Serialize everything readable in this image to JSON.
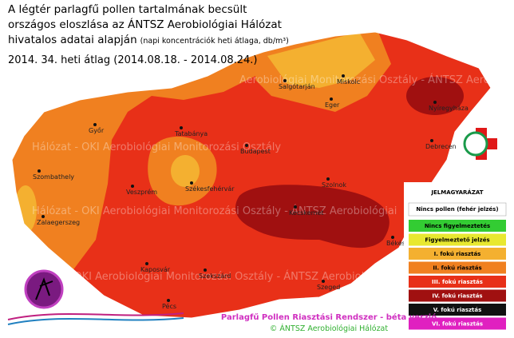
{
  "header": {
    "title_lines": [
      "A légtér parlagfű pollen tartalmának becsült",
      "országos eloszlása az ÁNTSZ Aerobiológiai Hálózat",
      "hivatalos adatai alapján"
    ],
    "note": "(napi koncentrációk heti átlaga, db/m³)",
    "period": "2014. 34. heti átlag (2014.08.18. - 2014.08.24.)"
  },
  "watermarks": [
    "Aerobiológiai Monitorozási Osztály - ÁNTSZ Aerobiológiai",
    "Hálózat - OKI Aerobiológiai Monitorozási Osztály",
    "Hálózat - OKI Aerobiológiai Monitorozási Osztály - ÁNTSZ Aerobiológiai",
    "álózat - OKI Aerobiológiai Monitorozási Osztály - ÁNTSZ Aerobiológiai"
  ],
  "cities": [
    "Miskolc",
    "Salgótarján",
    "Eger",
    "Nyíregyháza",
    "Győr",
    "Tatabánya",
    "Budapest",
    "Debrecen",
    "Szombathely",
    "Veszprém",
    "Székesfehérvár",
    "Szolnok",
    "Zalaegerszeg",
    "Kecskemét",
    "Békéscsaba",
    "Kaposvár",
    "Szekszárd",
    "Szeged",
    "Pécs"
  ],
  "legend": {
    "title": "JELMAGYARÁZAT",
    "subtitle": "Nincs pollen (fehér jelzés)",
    "items": [
      {
        "label": "Nincs figyelmeztetés",
        "color": "#33cc33"
      },
      {
        "label": "Figyelmeztető jelzés",
        "color": "#e8e830"
      },
      {
        "label": "I. fokú riasztás",
        "color": "#f4b030"
      },
      {
        "label": "II. fokú riasztás",
        "color": "#f08020"
      },
      {
        "label": "III. fokú riasztás",
        "color": "#e83018"
      },
      {
        "label": "IV. fokú riasztás",
        "color": "#a01010"
      },
      {
        "label": "V. fokú riasztás",
        "color": "#111111"
      },
      {
        "label": "VI. fokú riasztás",
        "color": "#e020c0"
      }
    ]
  },
  "footer": {
    "system": "Parlagfű Pollen Riasztási Rendszer - béta verzió",
    "copyright": "© ÁNTSZ Aerobiológiai Hálózat"
  }
}
